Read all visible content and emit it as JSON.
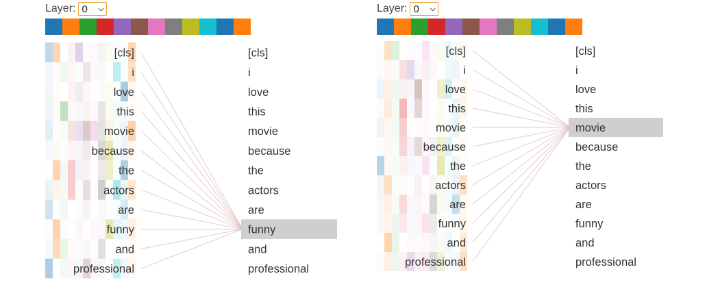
{
  "panels": [
    {
      "layer_label": "Layer:",
      "layer_value": "0",
      "head_colors": [
        "#1f77b4",
        "#ff7f0e",
        "#2ca02c",
        "#d62728",
        "#9467bd",
        "#8c564b",
        "#e377c2",
        "#7f7f7f",
        "#bcbd22",
        "#17becf",
        "#1f77b4",
        "#ff7f0e"
      ],
      "left_tokens": [
        "[cls]",
        "i",
        "love",
        "this",
        "movie",
        "because",
        "the",
        "actors",
        "are",
        "funny",
        "and",
        "professional"
      ],
      "right_tokens": [
        "[cls]",
        "i",
        "love",
        "this",
        "movie",
        "because",
        "the",
        "actors",
        "are",
        "funny",
        "and",
        "professional"
      ],
      "selected_index": 9
    },
    {
      "layer_label": "Layer:",
      "layer_value": "0",
      "head_colors": [
        "#1f77b4",
        "#ff7f0e",
        "#2ca02c",
        "#d62728",
        "#9467bd",
        "#8c564b",
        "#e377c2",
        "#7f7f7f",
        "#bcbd22",
        "#17becf",
        "#1f77b4",
        "#ff7f0e"
      ],
      "left_tokens": [
        "[cls]",
        "i",
        "love",
        "this",
        "movie",
        "because",
        "the",
        "actors",
        "are",
        "funny",
        "and",
        "professional"
      ],
      "right_tokens": [
        "[cls]",
        "i",
        "love",
        "this",
        "movie",
        "because",
        "the",
        "actors",
        "are",
        "funny",
        "and",
        "professional"
      ],
      "selected_index": 4
    }
  ]
}
